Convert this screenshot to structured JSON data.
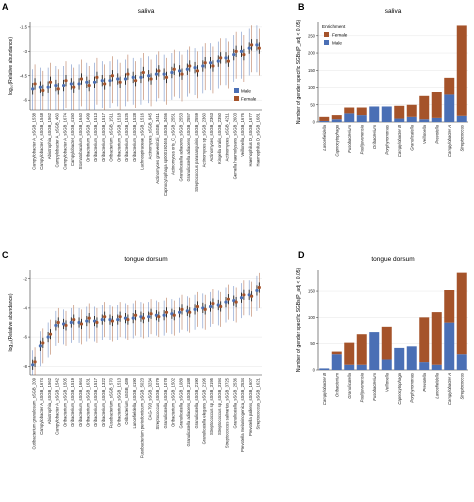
{
  "colors": {
    "male": "#4a6fb5",
    "female": "#a5532a",
    "grid": "#e6e6e6",
    "axis": "#333333"
  },
  "chart_data": [
    {
      "id": "A",
      "panel_letter": "A",
      "type": "scatter",
      "title": "saliva",
      "ylabel": "log₁₀(Relative abundance)",
      "ylim": [
        -6.6,
        -1.2
      ],
      "yticks": [
        -1.5,
        -3,
        -4.5,
        -6
      ],
      "legend": {
        "position": "bottom-right",
        "entries": [
          "Male",
          "Female"
        ]
      },
      "categories": [
        "Campylobacter A_sSGB_1538",
        "Campylobacter A_sSGB_1548",
        "Abiotrophia_sSGB_1562",
        "Campylobacter A_sSGB_460",
        "Campylobacter A_sSGB_1674",
        "Campylobacter_sSGB_4150",
        "Stomatobaculum_sSGB_1640",
        "Oribacterium_sSGB_1499",
        "Oribacterium_sSGB_1513",
        "Oribacterium_sSGB_1517",
        "Oribacterium_sSGB_1511",
        "Oribacterium_sSGB_1518",
        "Oribacterium_sSGB_1525",
        "Oribacterium_sSGB_1528",
        "Lachnospiraceae_sSGB_1516",
        "Actinomyces_sSGB_945",
        "Actinomyces graevenitzii_sSGB_3411",
        "Capnocytophaga sp000192465_sSGB_3456",
        "Actinomyces oris_C_sSGB_2551",
        "Granulicatella adiacens_sSGB_2553",
        "Granulicatella adiacens_sSGB_2557",
        "Streptococcus parasanguinis_sSGB_2559",
        "Actinomyces sp_sSGB_2360",
        "Actinomyces_sSGB_2363",
        "Kingella oralis_sSGB_2350",
        "Actinomyces_sSGB_4211",
        "Gemella haemolysans_sSGB_2603",
        "Veillonella_sSGB_1676",
        "Haemophilus D_sSGB_1677",
        "Haemophilus D_sSGB_1681"
      ],
      "series": [
        {
          "name": "Male",
          "values": [
            -5.3,
            -5.2,
            -5.2,
            -5.1,
            -5.1,
            -5.0,
            -5.0,
            -4.9,
            -4.9,
            -4.8,
            -4.8,
            -4.7,
            -4.7,
            -4.6,
            -4.6,
            -4.5,
            -4.4,
            -4.4,
            -4.3,
            -4.2,
            -4.1,
            -4.0,
            -3.9,
            -3.7,
            -3.6,
            -3.4,
            -3.2,
            -3.0,
            -2.8,
            -2.6
          ]
        },
        {
          "name": "Female",
          "values": [
            -5.0,
            -5.4,
            -4.9,
            -5.3,
            -4.8,
            -5.2,
            -4.7,
            -5.1,
            -4.6,
            -5.0,
            -4.5,
            -4.9,
            -4.4,
            -4.8,
            -4.3,
            -4.7,
            -4.2,
            -4.6,
            -4.1,
            -4.4,
            -3.9,
            -4.2,
            -3.7,
            -3.9,
            -3.4,
            -3.6,
            -3.0,
            -3.2,
            -2.6,
            -2.8
          ]
        }
      ]
    },
    {
      "id": "B",
      "panel_letter": "B",
      "type": "bar",
      "stacked": true,
      "title": "saliva",
      "ylabel": "Number of gender specific SGBs(P_adj < 0.05)",
      "ylim": [
        0,
        290
      ],
      "yticks": [
        0,
        50,
        100,
        150,
        200,
        250
      ],
      "legend": {
        "title": "Enrichment",
        "position": "top-left",
        "entries": [
          "Female",
          "Male"
        ]
      },
      "categories": [
        "Lancefieldella",
        "Capnocytophaga",
        "Fusobacterium",
        "Paulijuvenensia",
        "Oribacterium",
        "Porphyromonas",
        "Campylobacter B",
        "Granulicatella",
        "Veillonella",
        "Prevotella",
        "Campylobacter A",
        "Streptococcus"
      ],
      "series": [
        {
          "name": "Male",
          "values": [
            3,
            8,
            25,
            20,
            45,
            45,
            10,
            15,
            8,
            12,
            80,
            18
          ]
        },
        {
          "name": "Female",
          "values": [
            12,
            12,
            17,
            22,
            0,
            0,
            37,
            35,
            68,
            75,
            48,
            262
          ]
        }
      ]
    },
    {
      "id": "C",
      "panel_letter": "C",
      "type": "scatter",
      "title": "tongue dorsum",
      "ylabel": "log₁₀(Relative abundance)",
      "ylim": [
        -8.6,
        -1.4
      ],
      "yticks": [
        -2,
        -4,
        -6,
        -8
      ],
      "categories": [
        "Cutibacterium granulosum_sSGB_209",
        "Campylobacter A_sSGB_1674",
        "Abiotrophia_sSGB_1562",
        "Campylobacter A_sSGB_1542",
        "Oribacterium_sSGB_1505",
        "Oribacterium_sSGB_1519",
        "Oribacterium_sSGB_1664",
        "Oribacterium_sSGB_1631",
        "Oribacterium_sSGB_1517",
        "Oribacterium_sSGB_1322",
        "Fusobacterium_sSGB_570",
        "Oribacterium_sSGB_1513",
        "Oribacterium_sSGB_489",
        "Lancefieldella_sSGB_4190",
        "Fusobacterium periodonticum_sSGB_5023",
        "CAG-793_sSGB_3234",
        "Streptococcus_sSGB_1079",
        "Granulicatella_sSGB_1078",
        "Oribacterium_sSGB_1502",
        "Granulicatella_sSGB_1089",
        "Granulicatella adiacens_sSGB_2188",
        "Granulicatella_sSGB_2190",
        "Granulicatella elegans_sSGB_2196",
        "Streptococcus sp_sSGB_3195",
        "Streptococcus sp_sSGB_3194",
        "Streptococcus salivarius_sSGB_3725",
        "Granulicatella_sSGB_2536",
        "Prevotella melaninogenica_sSGB_2534",
        "Prevotella pallens_sSGB_1607",
        "Streptococcus_sSGB_1621"
      ],
      "series": [
        {
          "name": "Male",
          "values": [
            -7.9,
            -6.6,
            -6.0,
            -5.2,
            -5.1,
            -5.0,
            -5.0,
            -4.9,
            -4.9,
            -4.8,
            -4.8,
            -4.8,
            -4.7,
            -4.7,
            -4.6,
            -4.6,
            -4.5,
            -4.5,
            -4.4,
            -4.3,
            -4.2,
            -4.1,
            -4.0,
            -3.9,
            -3.8,
            -3.6,
            -3.5,
            -3.3,
            -3.1,
            -2.8
          ]
        },
        {
          "name": "Female",
          "values": [
            -7.7,
            -6.4,
            -5.8,
            -5.0,
            -5.2,
            -4.8,
            -5.1,
            -4.7,
            -5.0,
            -4.6,
            -4.9,
            -4.6,
            -4.8,
            -4.5,
            -4.7,
            -4.4,
            -4.6,
            -4.3,
            -4.5,
            -4.1,
            -4.3,
            -3.9,
            -4.1,
            -3.7,
            -3.9,
            -3.4,
            -3.6,
            -3.1,
            -3.2,
            -2.6
          ]
        }
      ]
    },
    {
      "id": "D",
      "panel_letter": "D",
      "type": "bar",
      "stacked": true,
      "title": "tongue dorsum",
      "ylabel": "Number of gender specific SGBs(P_adj < 0.05)",
      "ylim": [
        0,
        190
      ],
      "yticks": [
        0,
        50,
        100,
        150
      ],
      "categories": [
        "Campylobacter B",
        "Oribacterium",
        "Granulicatella",
        "Paulijuvenensia",
        "Fusobacterium",
        "Veillonella",
        "Capnocytophaga",
        "Porphyromonas",
        "Prevotella",
        "Lancefieldella",
        "Campylobacter A",
        "Streptococcus"
      ],
      "series": [
        {
          "name": "Male",
          "values": [
            3,
            30,
            10,
            10,
            72,
            20,
            42,
            45,
            15,
            10,
            90,
            30
          ]
        },
        {
          "name": "Female",
          "values": [
            0,
            5,
            42,
            58,
            0,
            62,
            0,
            0,
            85,
            100,
            62,
            155
          ]
        }
      ]
    }
  ]
}
